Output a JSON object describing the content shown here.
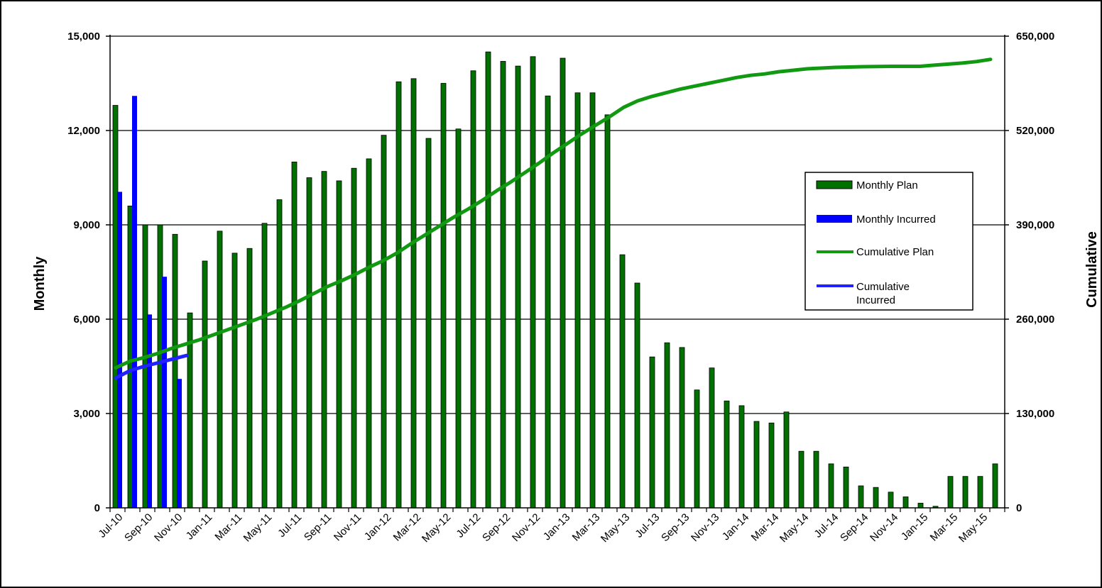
{
  "chart_data": {
    "type": "bar",
    "x_labels_shown": [
      "Jul-10",
      "Sep-10",
      "Nov-10",
      "Jan-11",
      "Mar-11",
      "May-11",
      "Jul-11",
      "Sep-11",
      "Nov-11",
      "Jan-12",
      "Mar-12",
      "May-12",
      "Jul-12",
      "Sep-12",
      "Nov-12",
      "Jan-13",
      "Mar-13",
      "May-13",
      "Jul-13",
      "Sep-13",
      "Nov-13",
      "Jan-14",
      "Mar-14",
      "May-14",
      "Jul-14",
      "Sep-14",
      "Nov-14",
      "Jan-15",
      "Mar-15",
      "May-15"
    ],
    "left_axis": {
      "title": "Monthly",
      "min": 0,
      "max": 15000,
      "ticks": [
        "0",
        "3,000",
        "6,000",
        "9,000",
        "12,000",
        "15,000"
      ]
    },
    "right_axis": {
      "title": "Cumulative",
      "min": 0,
      "max": 650000,
      "ticks": [
        "0",
        "130,000",
        "260,000",
        "390,000",
        "520,000",
        "650,000"
      ]
    },
    "grid": true,
    "legend_position": "right",
    "legend": [
      "Monthly Plan",
      "Monthly Incurred",
      "Cumulative Plan",
      "Cumulative Incurred"
    ],
    "series": [
      {
        "name": "Monthly Plan",
        "type": "bar",
        "axis": "left",
        "color": "#007000",
        "values": [
          12800,
          9600,
          9000,
          9000,
          8700,
          6200,
          7850,
          8800,
          8100,
          8250,
          9050,
          9800,
          11000,
          10500,
          10700,
          10400,
          10800,
          11100,
          11850,
          13550,
          13650,
          11750,
          13500,
          12050,
          13900,
          14500,
          14200,
          14050,
          14350,
          13100,
          14300,
          13200,
          13200,
          12500,
          8050,
          7150,
          4800,
          5250,
          5100,
          3750,
          4450,
          3400,
          3250,
          2750,
          2700,
          3050,
          1800,
          1800,
          1400,
          1300,
          700,
          650,
          500,
          350,
          150,
          50,
          1000,
          1000,
          1000,
          1400
        ]
      },
      {
        "name": "Monthly Incurred",
        "type": "bar",
        "axis": "left",
        "color": "#0000ff",
        "values": [
          10050,
          13100,
          6150,
          7350,
          4100
        ]
      },
      {
        "name": "Cumulative Plan",
        "type": "line",
        "axis": "right",
        "color": "#119911",
        "values": [
          193000,
          202000,
          207000,
          213000,
          220000,
          226000,
          232000,
          239000,
          246000,
          253000,
          260000,
          268000,
          276000,
          285000,
          295000,
          305000,
          313000,
          322000,
          332000,
          341000,
          352000,
          365000,
          377000,
          389000,
          401000,
          412000,
          424000,
          437000,
          449000,
          462000,
          475000,
          489000,
          502000,
          515000,
          527000,
          539000,
          552000,
          561000,
          567000,
          572000,
          577000,
          581000,
          585000,
          589000,
          593000,
          596000,
          598000,
          601000,
          603000,
          605000,
          606000,
          607000,
          607500,
          608000,
          608300,
          608500,
          608500,
          608500,
          610000,
          611500,
          613000,
          615000,
          618000
        ]
      },
      {
        "name": "Cumulative Incurred",
        "type": "line",
        "axis": "right",
        "color": "#2222ff",
        "values": [
          179000,
          189000,
          195000,
          200000,
          205000,
          210000
        ]
      }
    ]
  },
  "colors": {
    "plan_bar": "#007000",
    "incurred_bar": "#0000ff",
    "cum_plan": "#119911",
    "cum_incurred": "#2222ff"
  }
}
